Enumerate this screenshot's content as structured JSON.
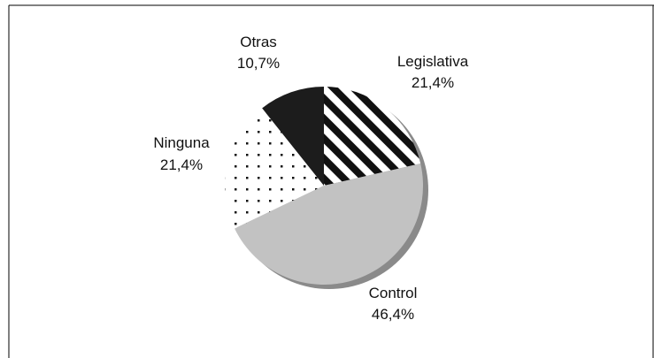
{
  "chart_data": {
    "type": "pie",
    "categories": [
      "Legislativa",
      "Control",
      "Ninguna",
      "Otras"
    ],
    "values": [
      21.4,
      46.4,
      21.4,
      10.7
    ],
    "value_labels": [
      "21,4%",
      "46,4%",
      "21,4%",
      "10,7%"
    ],
    "fills": [
      "diagonal-stripes",
      "#c2c2c2",
      "dots",
      "#1c1c1c"
    ],
    "title": "",
    "start": "12 o'clock, clockwise",
    "shadow_color": "#8a8a8a",
    "legend": "none"
  }
}
